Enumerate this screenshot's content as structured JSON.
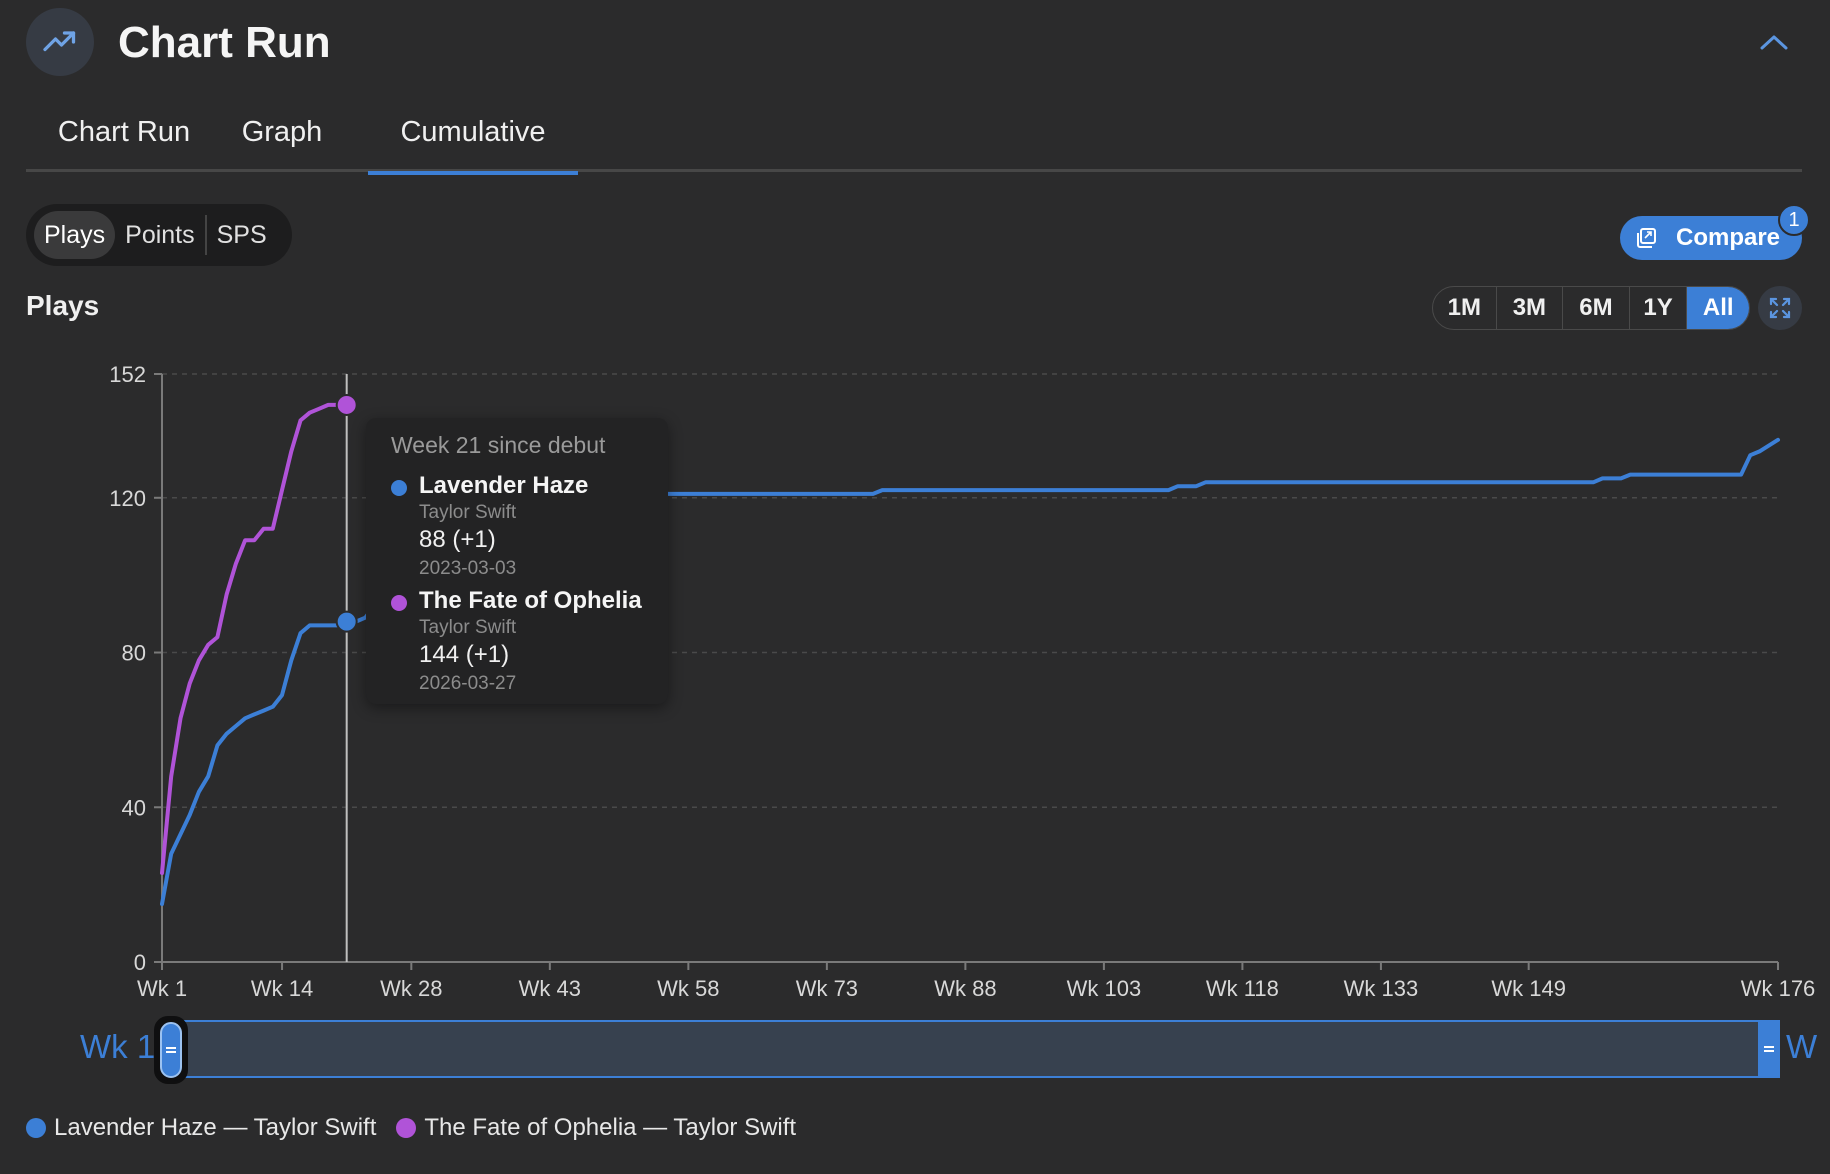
{
  "header": {
    "title": "Chart Run",
    "icon": "trending-up-icon"
  },
  "tabs": [
    {
      "label": "Chart Run",
      "active": false
    },
    {
      "label": "Graph",
      "active": false
    },
    {
      "label": "Cumulative",
      "active": true
    }
  ],
  "metric_toggle": {
    "options": [
      "Plays",
      "Points",
      "SPS"
    ],
    "selected": "Plays"
  },
  "compare": {
    "label": "Compare",
    "badge": "1"
  },
  "section_label": "Plays",
  "ranges": {
    "options": [
      "1M",
      "3M",
      "6M",
      "1Y",
      "All"
    ],
    "selected": "All"
  },
  "tooltip": {
    "heading": "Week 21 since debut",
    "entries": [
      {
        "song": "Lavender Haze",
        "artist": "Taylor Swift",
        "value": "88 (+1)",
        "date": "2023-03-03"
      },
      {
        "song": "The Fate of Ophelia",
        "artist": "Taylor Swift",
        "value": "144 (+1)",
        "date": "2026-03-27"
      }
    ]
  },
  "scroller": {
    "left_label": "Wk 1",
    "right_label": "W"
  },
  "legend": [
    "Lavender Haze — Taylor Swift",
    "The Fate of Ophelia — Taylor Swift"
  ],
  "colors": {
    "accent": "#3c7fd6",
    "series1": "#3c7fd6",
    "series2": "#b053d8",
    "background": "#2b2b2c"
  },
  "chart_data": {
    "type": "line",
    "ylim": [
      0,
      152
    ],
    "xlim": [
      1,
      176
    ],
    "yticks": [
      0,
      40,
      80,
      120,
      152
    ],
    "xticks": [
      1,
      14,
      28,
      43,
      58,
      73,
      88,
      103,
      118,
      133,
      149,
      176
    ],
    "xtick_labels": [
      "Wk 1",
      "Wk 14",
      "Wk 28",
      "Wk 43",
      "Wk 58",
      "Wk 73",
      "Wk 88",
      "Wk 103",
      "Wk 118",
      "Wk 133",
      "Wk 149",
      "Wk 176"
    ],
    "grid": true,
    "hover_week": 21,
    "series": [
      {
        "name": "Lavender Haze — Taylor Swift",
        "color": "#3c7fd6",
        "x": [
          1,
          2,
          3,
          4,
          5,
          6,
          7,
          8,
          9,
          10,
          11,
          12,
          13,
          14,
          15,
          16,
          17,
          18,
          19,
          20,
          21,
          22,
          23,
          25,
          27,
          30,
          40,
          52,
          60,
          78,
          79,
          110,
          111,
          113,
          114,
          156,
          157,
          159,
          160,
          172,
          173,
          174,
          176
        ],
        "y": [
          15,
          28,
          33,
          38,
          44,
          48,
          56,
          59,
          61,
          63,
          64,
          65,
          66,
          69,
          78,
          85,
          87,
          87,
          87,
          87,
          88,
          88,
          89,
          95,
          110,
          118,
          120,
          121,
          121,
          121,
          122,
          122,
          123,
          123,
          124,
          124,
          125,
          125,
          126,
          126,
          131,
          132,
          135
        ]
      },
      {
        "name": "The Fate of Ophelia — Taylor Swift",
        "color": "#b053d8",
        "x": [
          1,
          2,
          3,
          4,
          5,
          6,
          7,
          8,
          9,
          10,
          11,
          12,
          13,
          14,
          15,
          16,
          17,
          18,
          19,
          20,
          21
        ],
        "y": [
          23,
          48,
          63,
          72,
          78,
          82,
          84,
          95,
          103,
          109,
          109,
          112,
          112,
          122,
          132,
          140,
          142,
          143,
          144,
          144,
          144
        ]
      }
    ]
  }
}
